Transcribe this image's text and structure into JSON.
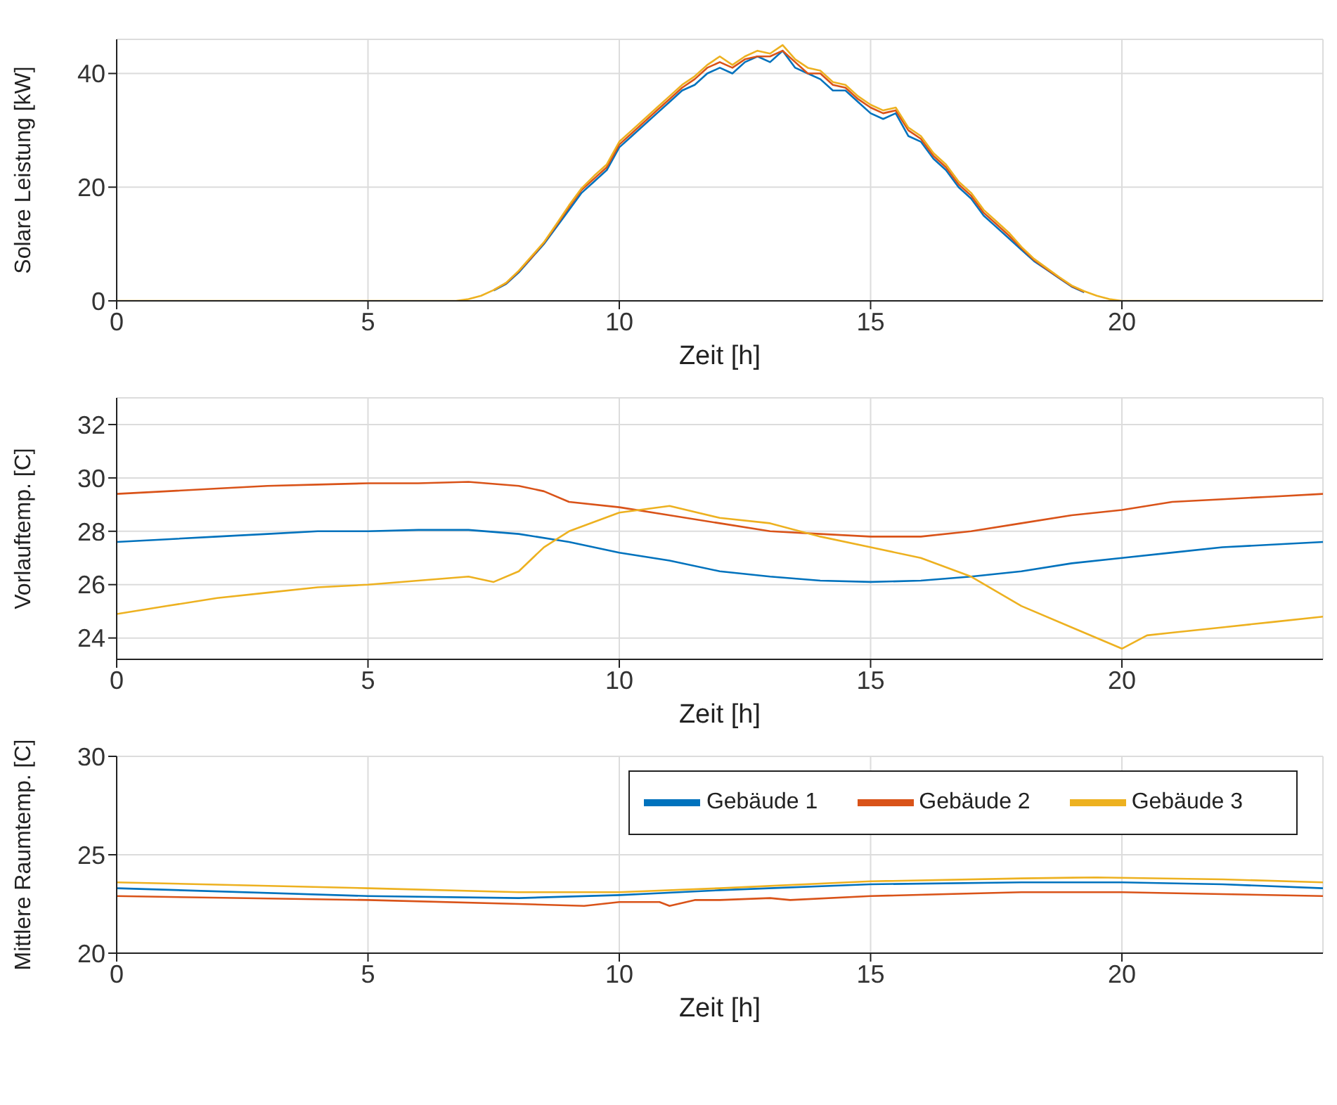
{
  "chart_data": [
    {
      "type": "line",
      "xlabel": "Zeit [h]",
      "ylabel": "Solare Leistung [kW]",
      "xlim": [
        0,
        24
      ],
      "xticks": [
        0,
        5,
        10,
        15,
        20
      ],
      "ylim": [
        0,
        46
      ],
      "yticks": [
        0,
        20,
        40
      ],
      "grid": true,
      "legend": false,
      "x": [
        0,
        5,
        6.75,
        7,
        7.25,
        7.5,
        7.75,
        8,
        8.25,
        8.5,
        8.75,
        9,
        9.25,
        9.5,
        9.75,
        10,
        10.25,
        10.5,
        10.75,
        11,
        11.25,
        11.5,
        11.75,
        12,
        12.25,
        12.5,
        12.75,
        13,
        13.25,
        13.5,
        13.75,
        14,
        14.25,
        14.5,
        14.75,
        15,
        15.25,
        15.5,
        15.75,
        16,
        16.25,
        16.5,
        16.75,
        17,
        17.25,
        17.5,
        17.75,
        18,
        18.25,
        18.5,
        18.75,
        19,
        19.25,
        19.5,
        19.75,
        20,
        24
      ],
      "series": [
        {
          "color": "#0072bd",
          "values": [
            null,
            null,
            null,
            null,
            null,
            1.8,
            3,
            5,
            7.5,
            10,
            13,
            16,
            19,
            21,
            23,
            27,
            29,
            31,
            33,
            35,
            37,
            38,
            40,
            41,
            40,
            42,
            43,
            42,
            44,
            41,
            40,
            39,
            37,
            37,
            35,
            33,
            32,
            33,
            29,
            28,
            25,
            23,
            20,
            18,
            15,
            13,
            11,
            9,
            7,
            5.5,
            4,
            2.5,
            1.5,
            null,
            null,
            null,
            null
          ]
        },
        {
          "color": "#d95319",
          "values": [
            null,
            null,
            null,
            null,
            null,
            1.9,
            3.1,
            5.2,
            7.6,
            10.2,
            13.3,
            16.5,
            19.5,
            21.5,
            23.5,
            27.5,
            29.5,
            31.5,
            33.5,
            35.5,
            37.5,
            39,
            41,
            42,
            41,
            42.5,
            43,
            43,
            44,
            42,
            40,
            40,
            38,
            37.5,
            35.5,
            34,
            33,
            33.5,
            30,
            28.5,
            25.5,
            23.5,
            20.5,
            18.5,
            15.5,
            13.5,
            11.5,
            9.3,
            7.2,
            5.6,
            4.1,
            2.6,
            1.6,
            null,
            null,
            null,
            null
          ]
        },
        {
          "color": "#edb120",
          "values": [
            0,
            0,
            0,
            0.3,
            0.9,
            1.9,
            3.2,
            5.3,
            7.8,
            10.3,
            13.5,
            16.8,
            19.8,
            22,
            24,
            28,
            30,
            32,
            34,
            36,
            38,
            39.5,
            41.5,
            43,
            41.5,
            43,
            44,
            43.5,
            45,
            42.5,
            41,
            40.5,
            38.5,
            38,
            36,
            34.5,
            33.5,
            34,
            30.5,
            29,
            26,
            24,
            21,
            19,
            16,
            14,
            12,
            9.5,
            7.4,
            5.8,
            4.2,
            2.7,
            1.7,
            0.9,
            0.3,
            0,
            0
          ]
        }
      ]
    },
    {
      "type": "line",
      "xlabel": "Zeit [h]",
      "ylabel": "Vorlauftemp. [C]",
      "xlim": [
        0,
        24
      ],
      "xticks": [
        0,
        5,
        10,
        15,
        20
      ],
      "ylim": [
        23.2,
        33
      ],
      "yticks": [
        24,
        26,
        28,
        30,
        32
      ],
      "grid": true,
      "legend": false,
      "series": [
        {
          "color": "#0072bd",
          "x": [
            0,
            1,
            2,
            3,
            4,
            5,
            6,
            7,
            8,
            9,
            10,
            11,
            12,
            13,
            14,
            15,
            16,
            17,
            18,
            19,
            20,
            21,
            22,
            23,
            24
          ],
          "values": [
            27.6,
            27.7,
            27.8,
            27.9,
            28,
            28,
            28.05,
            28.05,
            27.9,
            27.6,
            27.2,
            26.9,
            26.5,
            26.3,
            26.15,
            26.1,
            26.15,
            26.3,
            26.5,
            26.8,
            27,
            27.2,
            27.4,
            27.5,
            27.6
          ]
        },
        {
          "color": "#d95319",
          "x": [
            0,
            1,
            2,
            3,
            4,
            5,
            6,
            7,
            8,
            8.5,
            9,
            10,
            11,
            12,
            13,
            14,
            15,
            16,
            17,
            18,
            19,
            20,
            21,
            22,
            23,
            24
          ],
          "values": [
            29.4,
            29.5,
            29.6,
            29.7,
            29.75,
            29.8,
            29.8,
            29.85,
            29.7,
            29.5,
            29.1,
            28.9,
            28.6,
            28.3,
            28,
            27.9,
            27.8,
            27.8,
            28,
            28.3,
            28.6,
            28.8,
            29.1,
            29.2,
            29.3,
            29.4
          ]
        },
        {
          "color": "#edb120",
          "x": [
            0,
            1,
            2,
            3,
            4,
            5,
            6,
            7,
            7.5,
            8,
            8.5,
            9,
            10,
            11,
            12,
            13,
            14,
            15,
            16,
            17,
            18,
            19,
            20,
            20.5,
            21,
            22,
            23,
            24
          ],
          "values": [
            24.9,
            25.2,
            25.5,
            25.7,
            25.9,
            26,
            26.15,
            26.3,
            26.1,
            26.5,
            27.4,
            28,
            28.7,
            28.95,
            28.5,
            28.3,
            27.8,
            27.4,
            27,
            26.3,
            25.2,
            24.4,
            23.6,
            24.1,
            24.2,
            24.4,
            24.6,
            24.8
          ]
        }
      ]
    },
    {
      "type": "line",
      "xlabel": "Zeit [h]",
      "ylabel": "Mittlere Raumtemp. [C]",
      "xlim": [
        0,
        24
      ],
      "xticks": [
        0,
        5,
        10,
        15,
        20
      ],
      "ylim": [
        20,
        30
      ],
      "yticks": [
        20,
        25,
        30
      ],
      "grid": true,
      "legend": "top right",
      "series": [
        {
          "name": "Gebäude 1",
          "color": "#0072bd",
          "x": [
            0,
            5,
            8,
            10,
            12,
            15,
            18,
            20,
            22,
            24
          ],
          "values": [
            23.3,
            22.9,
            22.8,
            22.95,
            23.2,
            23.5,
            23.6,
            23.6,
            23.5,
            23.3
          ]
        },
        {
          "name": "Gebäude 2",
          "color": "#d95319",
          "x": [
            0,
            5,
            8,
            9.3,
            10,
            10.8,
            11,
            11.5,
            12,
            13,
            13.4,
            15,
            18,
            20,
            22,
            24
          ],
          "values": [
            22.9,
            22.7,
            22.5,
            22.4,
            22.6,
            22.6,
            22.4,
            22.7,
            22.7,
            22.8,
            22.7,
            22.9,
            23.1,
            23.1,
            23,
            22.9
          ]
        },
        {
          "name": "Gebäude 3",
          "color": "#edb120",
          "x": [
            0,
            5,
            8,
            10,
            12,
            15,
            18,
            19.5,
            22,
            24
          ],
          "values": [
            23.6,
            23.3,
            23.1,
            23.1,
            23.3,
            23.65,
            23.8,
            23.85,
            23.75,
            23.6
          ]
        }
      ]
    }
  ]
}
